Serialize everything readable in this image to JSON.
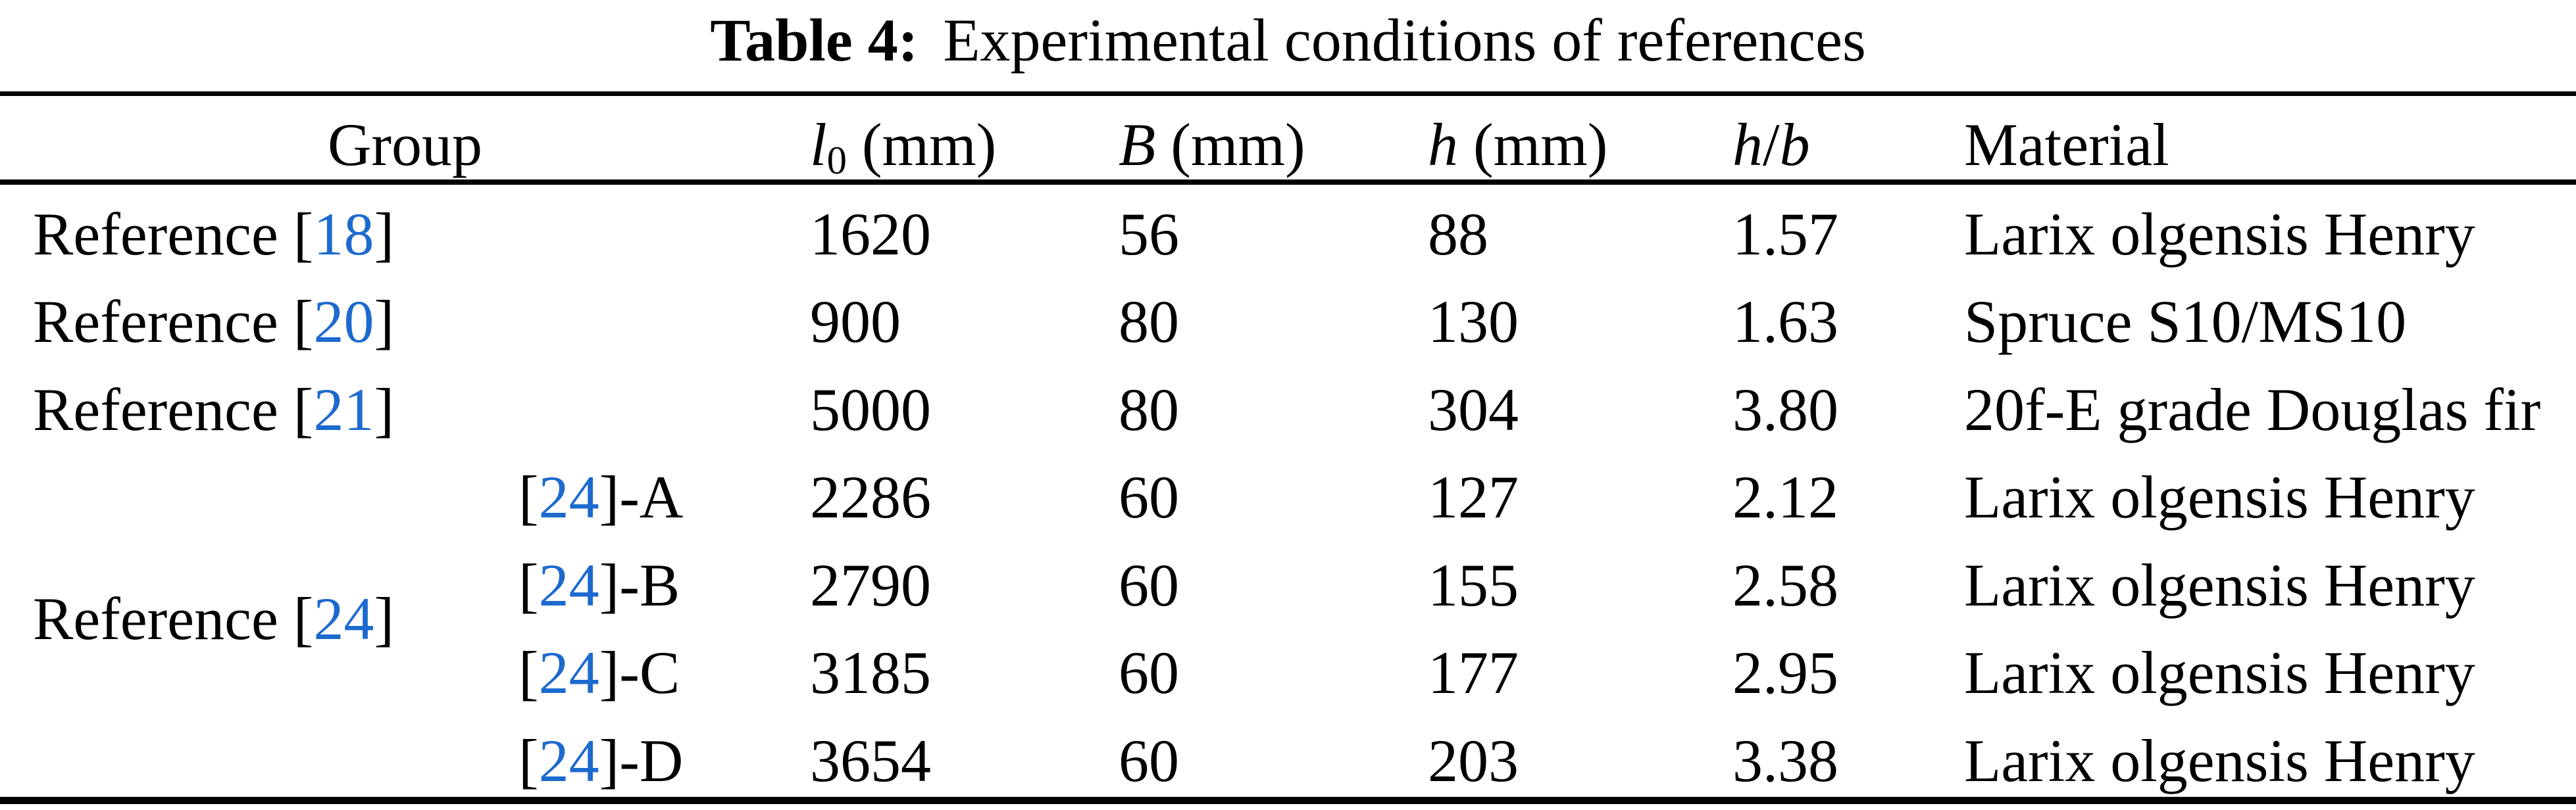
{
  "caption": {
    "label": "Table 4:",
    "text": "Experimental conditions of references"
  },
  "colors": {
    "citation_blue": "#1d6ace",
    "ink": "#000000",
    "paper": "#ffffff"
  },
  "header": {
    "group": "Group",
    "l0": {
      "symbol": "l",
      "subscript": "0",
      "unit": " (mm)"
    },
    "b": {
      "symbol": "B",
      "unit": " (mm)"
    },
    "h": {
      "symbol": "h",
      "unit": " (mm)"
    },
    "h_over_b": {
      "numerator": "h",
      "slash": "/",
      "denominator": "b"
    },
    "material": "Material"
  },
  "group_span": {
    "prefix": "Reference [",
    "citation": "24",
    "suffix": "]"
  },
  "rows": [
    {
      "ref_prefix": "Reference [",
      "citation": "18",
      "ref_suffix": "]",
      "l0": "1620",
      "b": "56",
      "h": "88",
      "h_over_b": "1.57",
      "material": "Larix olgensis Henry"
    },
    {
      "ref_prefix": "Reference [",
      "citation": "20",
      "ref_suffix": "]",
      "l0": "900",
      "b": "80",
      "h": "130",
      "h_over_b": "1.63",
      "material": "Spruce S10/MS10"
    },
    {
      "ref_prefix": "Reference [",
      "citation": "21",
      "ref_suffix": "]",
      "l0": "5000",
      "b": "80",
      "h": "304",
      "h_over_b": "3.80",
      "material": "20f-E grade Douglas fir"
    },
    {
      "sub_open": "[",
      "citation": "24",
      "sub_close": "]-A",
      "l0": "2286",
      "b": "60",
      "h": "127",
      "h_over_b": "2.12",
      "material": "Larix olgensis Henry"
    },
    {
      "sub_open": "[",
      "citation": "24",
      "sub_close": "]-B",
      "l0": "2790",
      "b": "60",
      "h": "155",
      "h_over_b": "2.58",
      "material": "Larix olgensis Henry"
    },
    {
      "sub_open": "[",
      "citation": "24",
      "sub_close": "]-C",
      "l0": "3185",
      "b": "60",
      "h": "177",
      "h_over_b": "2.95",
      "material": "Larix olgensis Henry"
    },
    {
      "sub_open": "[",
      "citation": "24",
      "sub_close": "]-D",
      "l0": "3654",
      "b": "60",
      "h": "203",
      "h_over_b": "3.38",
      "material": "Larix olgensis Henry"
    }
  ]
}
